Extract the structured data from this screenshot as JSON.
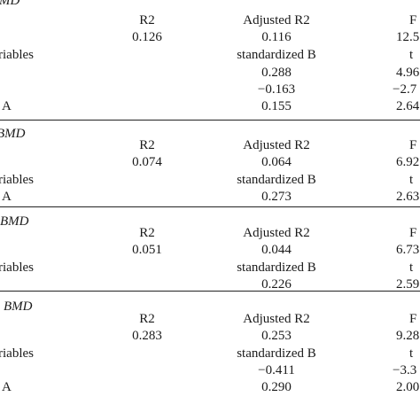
{
  "sections": [
    {
      "title": "MD",
      "header": {
        "r2": "R2",
        "adj_r2": "Adjusted R2",
        "f": "F"
      },
      "summary": {
        "r2": "0.126",
        "adj_r2": "0.116",
        "f": "12.5"
      },
      "vars_header": {
        "label": "riables",
        "std_b": "standardized B",
        "t": "t"
      },
      "rows": [
        {
          "label": "",
          "std_b": "0.288",
          "t": "4.96"
        },
        {
          "label": "",
          "std_b": "−0.163",
          "t": "−2.7"
        },
        {
          "label": "A",
          "std_b": "0.155",
          "t": "2.64"
        }
      ]
    },
    {
      "title": "BMD",
      "header": {
        "r2": "R2",
        "adj_r2": "Adjusted R2",
        "f": "F"
      },
      "summary": {
        "r2": "0.074",
        "adj_r2": "0.064",
        "f": "6.92"
      },
      "vars_header": {
        "label": "riables",
        "std_b": "standardized B",
        "t": "t"
      },
      "rows": [
        {
          "label": "A",
          "std_b": "0.273",
          "t": "2.63"
        }
      ]
    },
    {
      "title": "BMD",
      "header": {
        "r2": "R2",
        "adj_r2": "Adjusted R2",
        "f": "F"
      },
      "summary": {
        "r2": "0.051",
        "adj_r2": "0.044",
        "f": "6.73"
      },
      "vars_header": {
        "label": "riables",
        "std_b": "standardized B",
        "t": "t"
      },
      "rows": [
        {
          "label": "",
          "std_b": "0.226",
          "t": "2.59"
        }
      ]
    },
    {
      "title": "BMD",
      "header": {
        "r2": "R2",
        "adj_r2": "Adjusted R2",
        "f": "F"
      },
      "summary": {
        "r2": "0.283",
        "adj_r2": "0.253",
        "f": "9.28"
      },
      "vars_header": {
        "label": "riables",
        "std_b": "standardized B",
        "t": "t"
      },
      "rows": [
        {
          "label": "",
          "std_b": "−0.411",
          "t": "−3.3"
        },
        {
          "label": "A",
          "std_b": "0.290",
          "t": "2.00"
        }
      ]
    }
  ]
}
